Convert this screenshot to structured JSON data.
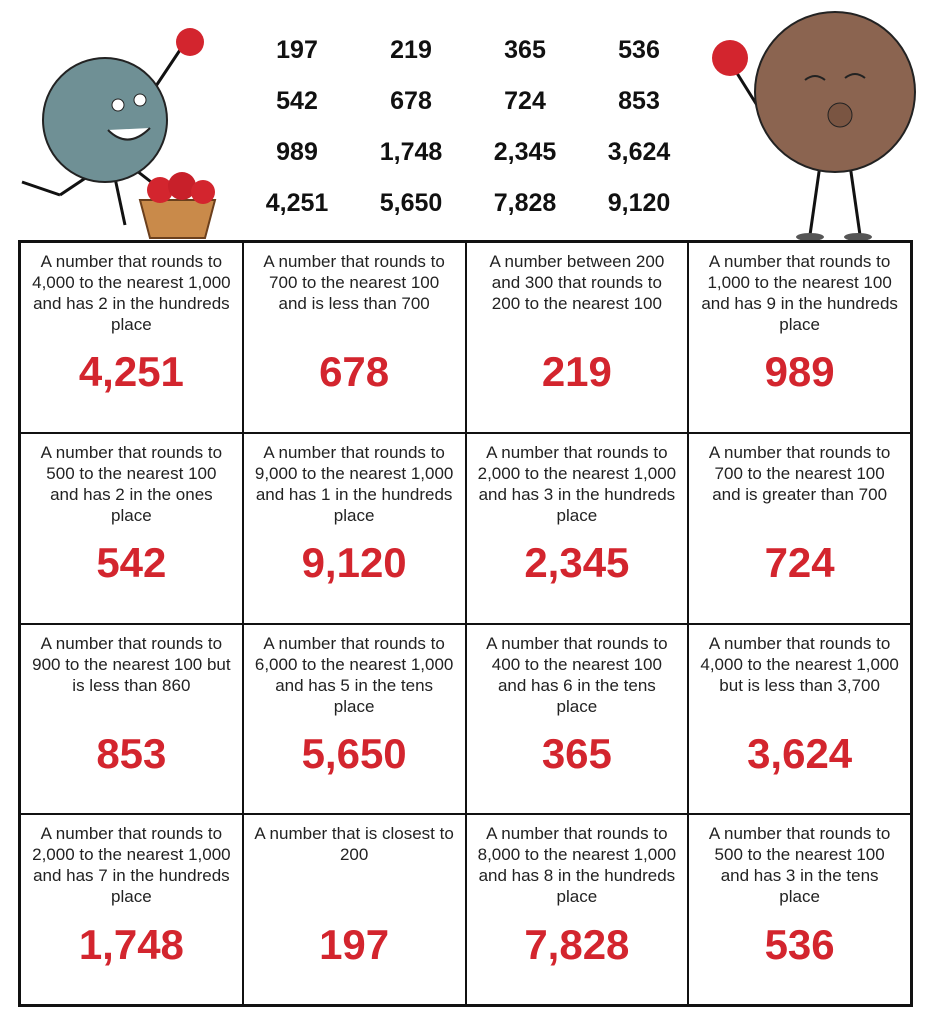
{
  "word_bank": [
    "197",
    "219",
    "365",
    "536",
    "542",
    "678",
    "724",
    "853",
    "989",
    "1,748",
    "2,345",
    "3,624",
    "4,251",
    "5,650",
    "7,828",
    "9,120"
  ],
  "cards": [
    {
      "clue": "A number that rounds to 4,000 to the nearest 1,000 and has 2 in the hundreds place",
      "answer": "4,251"
    },
    {
      "clue": "A number that rounds to 700 to the nearest 100 and is less than 700",
      "answer": "678"
    },
    {
      "clue": "A number between 200 and 300 that rounds to 200 to the nearest 100",
      "answer": "219"
    },
    {
      "clue": "A number that rounds to 1,000 to the nearest 100 and has 9 in the hundreds place",
      "answer": "989"
    },
    {
      "clue": "A number that rounds to 500 to the nearest 100 and has 2 in the ones place",
      "answer": "542"
    },
    {
      "clue": "A number that rounds to 9,000 to the nearest 1,000 and has 1 in the hundreds place",
      "answer": "9,120"
    },
    {
      "clue": "A number that rounds to 2,000 to the nearest 1,000 and has 3 in the hundreds place",
      "answer": "2,345"
    },
    {
      "clue": "A number that rounds to 700 to the nearest 100 and is greater than 700",
      "answer": "724"
    },
    {
      "clue": "A number that rounds to 900 to the nearest 100 but is less than 860",
      "answer": "853"
    },
    {
      "clue": "A number that rounds to 6,000 to the nearest 1,000 and has 5 in the tens place",
      "answer": "5,650"
    },
    {
      "clue": "A number that rounds to 400 to the nearest 100 and has 6 in the tens place",
      "answer": "365"
    },
    {
      "clue": "A number that rounds to 4,000 to the nearest 1,000 but is less than 3,700",
      "answer": "3,624"
    },
    {
      "clue": "A number that rounds to 2,000 to the nearest 1,000 and has 7 in the hundreds place",
      "answer": "1,748"
    },
    {
      "clue": "A number that is closest to 200",
      "answer": "197"
    },
    {
      "clue": "A number that rounds to 8,000 to the nearest 1,000 and has 8 in the hundreds place",
      "answer": "7,828"
    },
    {
      "clue": "A number that rounds to 500 to the nearest 100 and has 3 in the tens place",
      "answer": "536"
    }
  ]
}
